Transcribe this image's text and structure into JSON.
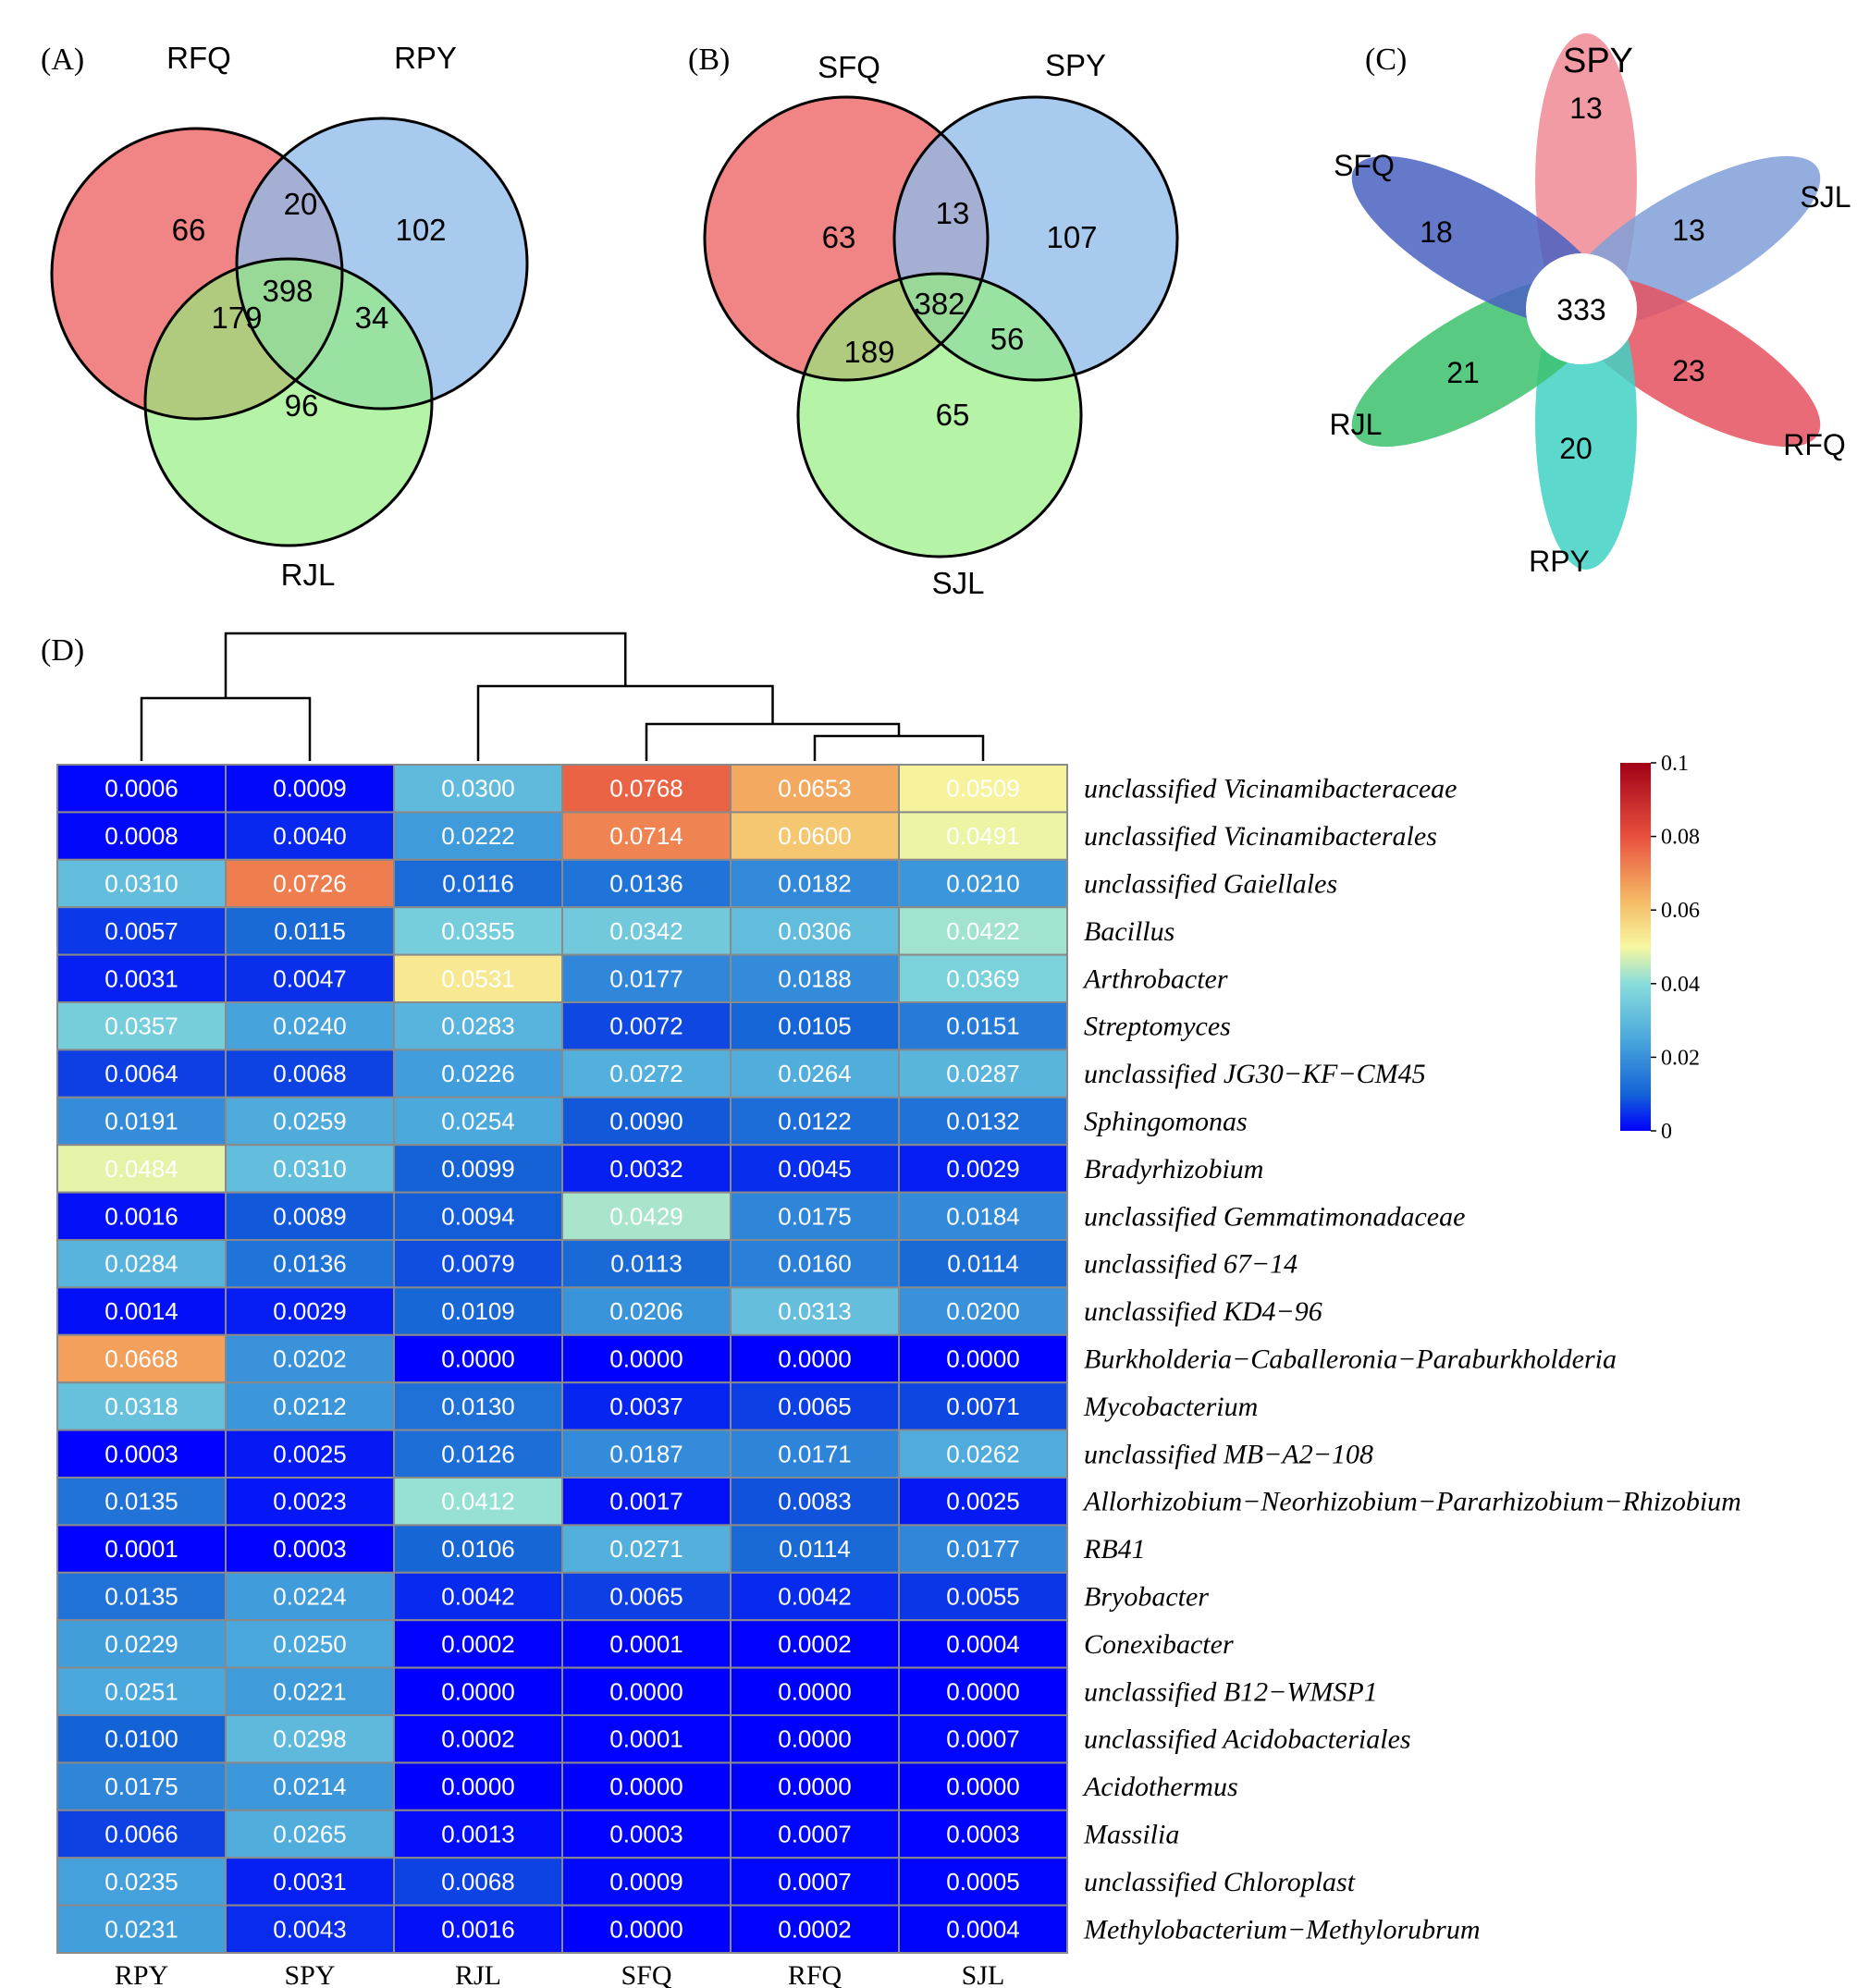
{
  "panels": {
    "A": {
      "label": "(A)",
      "sets": [
        "RFQ",
        "RPY",
        "RJL"
      ],
      "regions": {
        "only_RFQ": "66",
        "only_RPY": "102",
        "only_RJL": "96",
        "RFQ_RPY": "20",
        "RFQ_RJL": "179",
        "RPY_RJL": "34",
        "all": "398"
      }
    },
    "B": {
      "label": "(B)",
      "sets": [
        "SFQ",
        "SPY",
        "SJL"
      ],
      "regions": {
        "only_SFQ": "63",
        "only_SPY": "107",
        "only_SJL": "65",
        "SFQ_SPY": "13",
        "SFQ_SJL": "189",
        "SPY_SJL": "56",
        "all": "382"
      }
    },
    "C": {
      "label": "(C)",
      "petals": [
        {
          "name": "SPY",
          "value": "13",
          "color": "#f08a94"
        },
        {
          "name": "SJL",
          "value": "13",
          "color": "#7f9fd8"
        },
        {
          "name": "RFQ",
          "value": "23",
          "color": "#e5515f"
        },
        {
          "name": "RPY",
          "value": "20",
          "color": "#3fd1c4"
        },
        {
          "name": "RJL",
          "value": "21",
          "color": "#3cc16c"
        },
        {
          "name": "SFQ",
          "value": "18",
          "color": "#4a62c2"
        }
      ],
      "core": "333"
    },
    "D": {
      "label": "(D)"
    }
  },
  "colors": {
    "venn_red": "#f07a7a",
    "venn_blue": "#8fbbea",
    "venn_green": "#92ee7c",
    "heat_scale": [
      "#0000ff",
      "#1463d6",
      "#4aa8dc",
      "#89dddb",
      "#f7f7a0",
      "#f6bd67",
      "#e8503e",
      "#a30017"
    ]
  },
  "chart_data": {
    "type": "heatmap",
    "columns": [
      "RPY",
      "SPY",
      "RJL",
      "SFQ",
      "RFQ",
      "SJL"
    ],
    "rows": [
      "unclassified Vicinamibacteraceae",
      "unclassified Vicinamibacterales",
      "unclassified Gaiellales",
      "Bacillus",
      "Arthrobacter",
      "Streptomyces",
      "unclassified JG30−KF−CM45",
      "Sphingomonas",
      "Bradyrhizobium",
      "unclassified Gemmatimonadaceae",
      "unclassified 67−14",
      "unclassified KD4−96",
      "Burkholderia−Caballeronia−Paraburkholderia",
      "Mycobacterium",
      "unclassified MB−A2−108",
      "Allorhizobium−Neorhizobium−Pararhizobium−Rhizobium",
      "RB41",
      "Bryobacter",
      "Conexibacter",
      "unclassified B12−WMSP1",
      "unclassified Acidobacteriales",
      "Acidothermus",
      "Massilia",
      "unclassified Chloroplast",
      "Methylobacterium−Methylorubrum"
    ],
    "values": [
      [
        "0.0006",
        "0.0009",
        "0.0300",
        "0.0768",
        "0.0653",
        "0.0509"
      ],
      [
        "0.0008",
        "0.0040",
        "0.0222",
        "0.0714",
        "0.0600",
        "0.0491"
      ],
      [
        "0.0310",
        "0.0726",
        "0.0116",
        "0.0136",
        "0.0182",
        "0.0210"
      ],
      [
        "0.0057",
        "0.0115",
        "0.0355",
        "0.0342",
        "0.0306",
        "0.0422"
      ],
      [
        "0.0031",
        "0.0047",
        "0.0531",
        "0.0177",
        "0.0188",
        "0.0369"
      ],
      [
        "0.0357",
        "0.0240",
        "0.0283",
        "0.0072",
        "0.0105",
        "0.0151"
      ],
      [
        "0.0064",
        "0.0068",
        "0.0226",
        "0.0272",
        "0.0264",
        "0.0287"
      ],
      [
        "0.0191",
        "0.0259",
        "0.0254",
        "0.0090",
        "0.0122",
        "0.0132"
      ],
      [
        "0.0484",
        "0.0310",
        "0.0099",
        "0.0032",
        "0.0045",
        "0.0029"
      ],
      [
        "0.0016",
        "0.0089",
        "0.0094",
        "0.0429",
        "0.0175",
        "0.0184"
      ],
      [
        "0.0284",
        "0.0136",
        "0.0079",
        "0.0113",
        "0.0160",
        "0.0114"
      ],
      [
        "0.0014",
        "0.0029",
        "0.0109",
        "0.0206",
        "0.0313",
        "0.0200"
      ],
      [
        "0.0668",
        "0.0202",
        "0.0000",
        "0.0000",
        "0.0000",
        "0.0000"
      ],
      [
        "0.0318",
        "0.0212",
        "0.0130",
        "0.0037",
        "0.0065",
        "0.0071"
      ],
      [
        "0.0003",
        "0.0025",
        "0.0126",
        "0.0187",
        "0.0171",
        "0.0262"
      ],
      [
        "0.0135",
        "0.0023",
        "0.0412",
        "0.0017",
        "0.0083",
        "0.0025"
      ],
      [
        "0.0001",
        "0.0003",
        "0.0106",
        "0.0271",
        "0.0114",
        "0.0177"
      ],
      [
        "0.0135",
        "0.0224",
        "0.0042",
        "0.0065",
        "0.0042",
        "0.0055"
      ],
      [
        "0.0229",
        "0.0250",
        "0.0002",
        "0.0001",
        "0.0002",
        "0.0004"
      ],
      [
        "0.0251",
        "0.0221",
        "0.0000",
        "0.0000",
        "0.0000",
        "0.0000"
      ],
      [
        "0.0100",
        "0.0298",
        "0.0002",
        "0.0001",
        "0.0000",
        "0.0007"
      ],
      [
        "0.0175",
        "0.0214",
        "0.0000",
        "0.0000",
        "0.0000",
        "0.0000"
      ],
      [
        "0.0066",
        "0.0265",
        "0.0013",
        "0.0003",
        "0.0007",
        "0.0003"
      ],
      [
        "0.0235",
        "0.0031",
        "0.0068",
        "0.0009",
        "0.0007",
        "0.0005"
      ],
      [
        "0.0231",
        "0.0043",
        "0.0016",
        "0.0000",
        "0.0002",
        "0.0004"
      ]
    ],
    "colorbar": {
      "min": 0,
      "max": 0.1,
      "ticks": [
        "0",
        "0.02",
        "0.04",
        "0.06",
        "0.08",
        "0.1"
      ]
    },
    "dendrogram": "((RPY,SPY),(RJL,(SFQ,(RFQ,SJL))))"
  }
}
